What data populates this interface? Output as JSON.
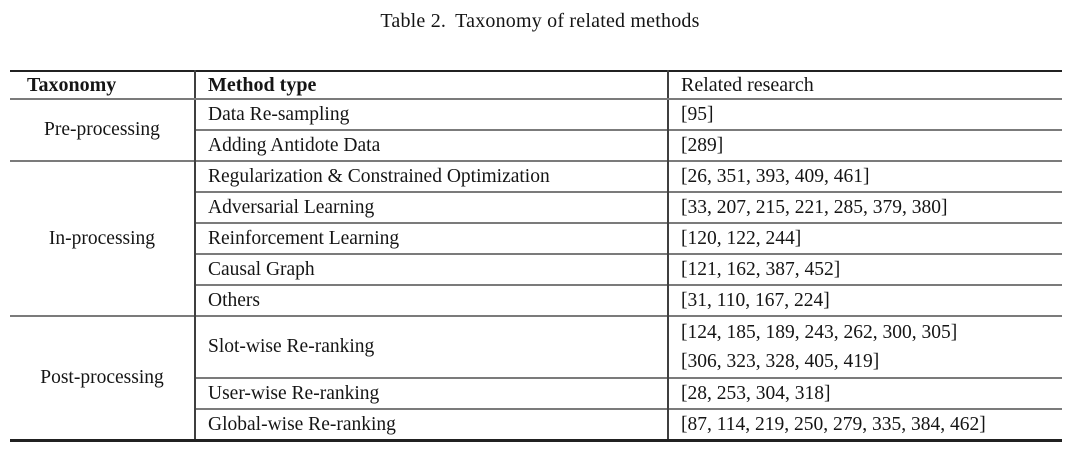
{
  "caption": {
    "label": "Table 2.",
    "text": "Taxonomy of related methods"
  },
  "table": {
    "headers": [
      {
        "label": "Taxonomy"
      },
      {
        "label": "Method type"
      },
      {
        "label": "Related research"
      }
    ],
    "sections": [
      {
        "taxonomy": "Pre-processing",
        "rows": [
          {
            "method": "Data Re-sampling",
            "refs": [
              "[95]"
            ]
          },
          {
            "method": "Adding Antidote Data",
            "refs": [
              "[289]"
            ]
          }
        ]
      },
      {
        "taxonomy": "In-processing",
        "rows": [
          {
            "method": "Regularization & Constrained Optimization",
            "refs": [
              "[26, 351, 393, 409, 461]"
            ]
          },
          {
            "method": "Adversarial Learning",
            "refs": [
              "[33, 207, 215, 221, 285, 379, 380]"
            ]
          },
          {
            "method": "Reinforcement Learning",
            "refs": [
              "[120, 122, 244]"
            ]
          },
          {
            "method": "Causal Graph",
            "refs": [
              "[121, 162, 387, 452]"
            ]
          },
          {
            "method": "Others",
            "refs": [
              "[31, 110, 167, 224]"
            ]
          }
        ]
      },
      {
        "taxonomy": "Post-processing",
        "rows": [
          {
            "method": "Slot-wise Re-ranking",
            "refs": [
              "[124, 185, 189, 243, 262, 300, 305]",
              "[306, 323, 328, 405, 419]"
            ]
          },
          {
            "method": "User-wise Re-ranking",
            "refs": [
              "[28, 253, 304, 318]"
            ]
          },
          {
            "method": "Global-wise Re-ranking",
            "refs": [
              "[87, 114, 219, 250, 279, 335, 384, 462]"
            ]
          }
        ]
      }
    ]
  },
  "colors": {
    "background": "#ffffff",
    "text": "#151515",
    "outer_rule": "#212121",
    "inner_rule": "#7b7b7b",
    "column_divider": "#3f3f3f"
  }
}
